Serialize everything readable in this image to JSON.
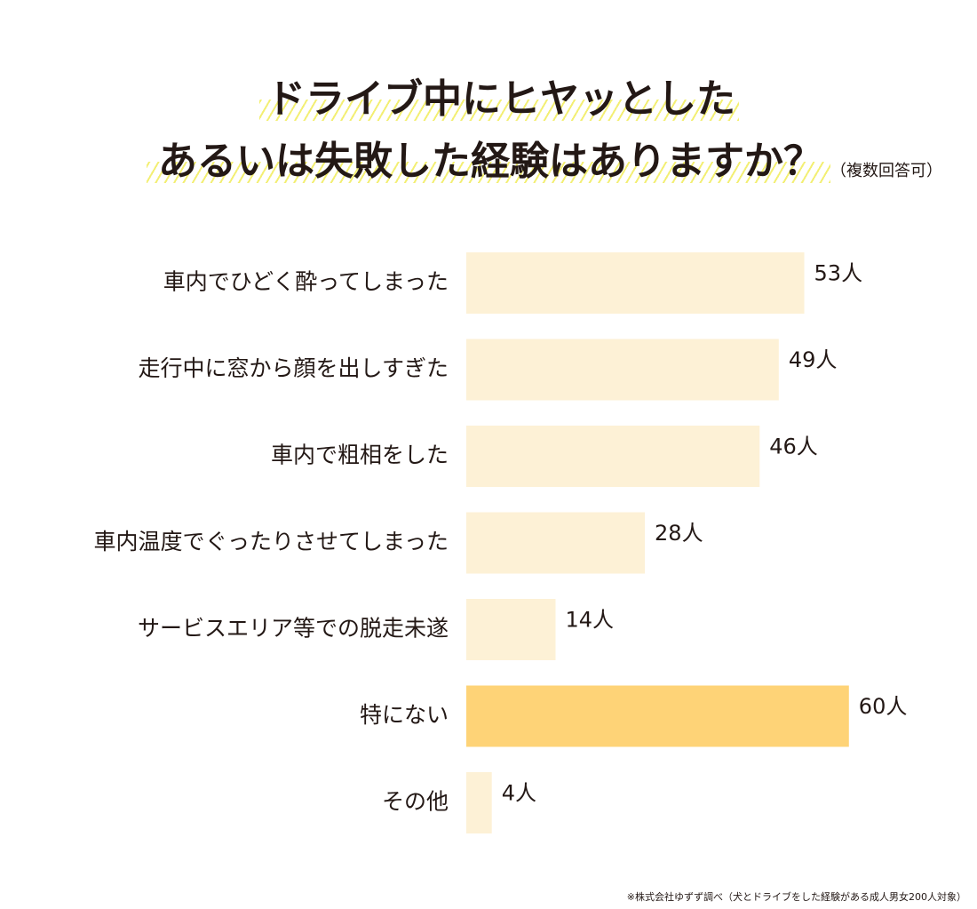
{
  "title": {
    "line1": "ドライブ中にヒヤッとした",
    "line2": "あるいは失敗した経験はありますか？",
    "note": "（複数回答可）"
  },
  "colors": {
    "bar": "#fdf1d6",
    "bar_highlight": "#fed377",
    "hatch": "#f3ef74",
    "text": "#231815"
  },
  "chart_data": {
    "type": "bar",
    "orientation": "horizontal",
    "unit": "人",
    "categories": [
      "車内でひどく酔ってしまった",
      "走行中に窓から顔を出しすぎた",
      "車内で粗相をした",
      "車内温度でぐったりさせてしまった",
      "サービスエリア等での脱走未遂",
      "特にない",
      "その他"
    ],
    "values": [
      53,
      49,
      46,
      28,
      14,
      60,
      4
    ],
    "highlight": "特にない",
    "xlim": [
      0,
      60
    ],
    "grid": false,
    "legend": "none"
  },
  "footnote": "※株式会社ゆずず調べ（犬とドライブをした経験がある成人男女200人対象）"
}
